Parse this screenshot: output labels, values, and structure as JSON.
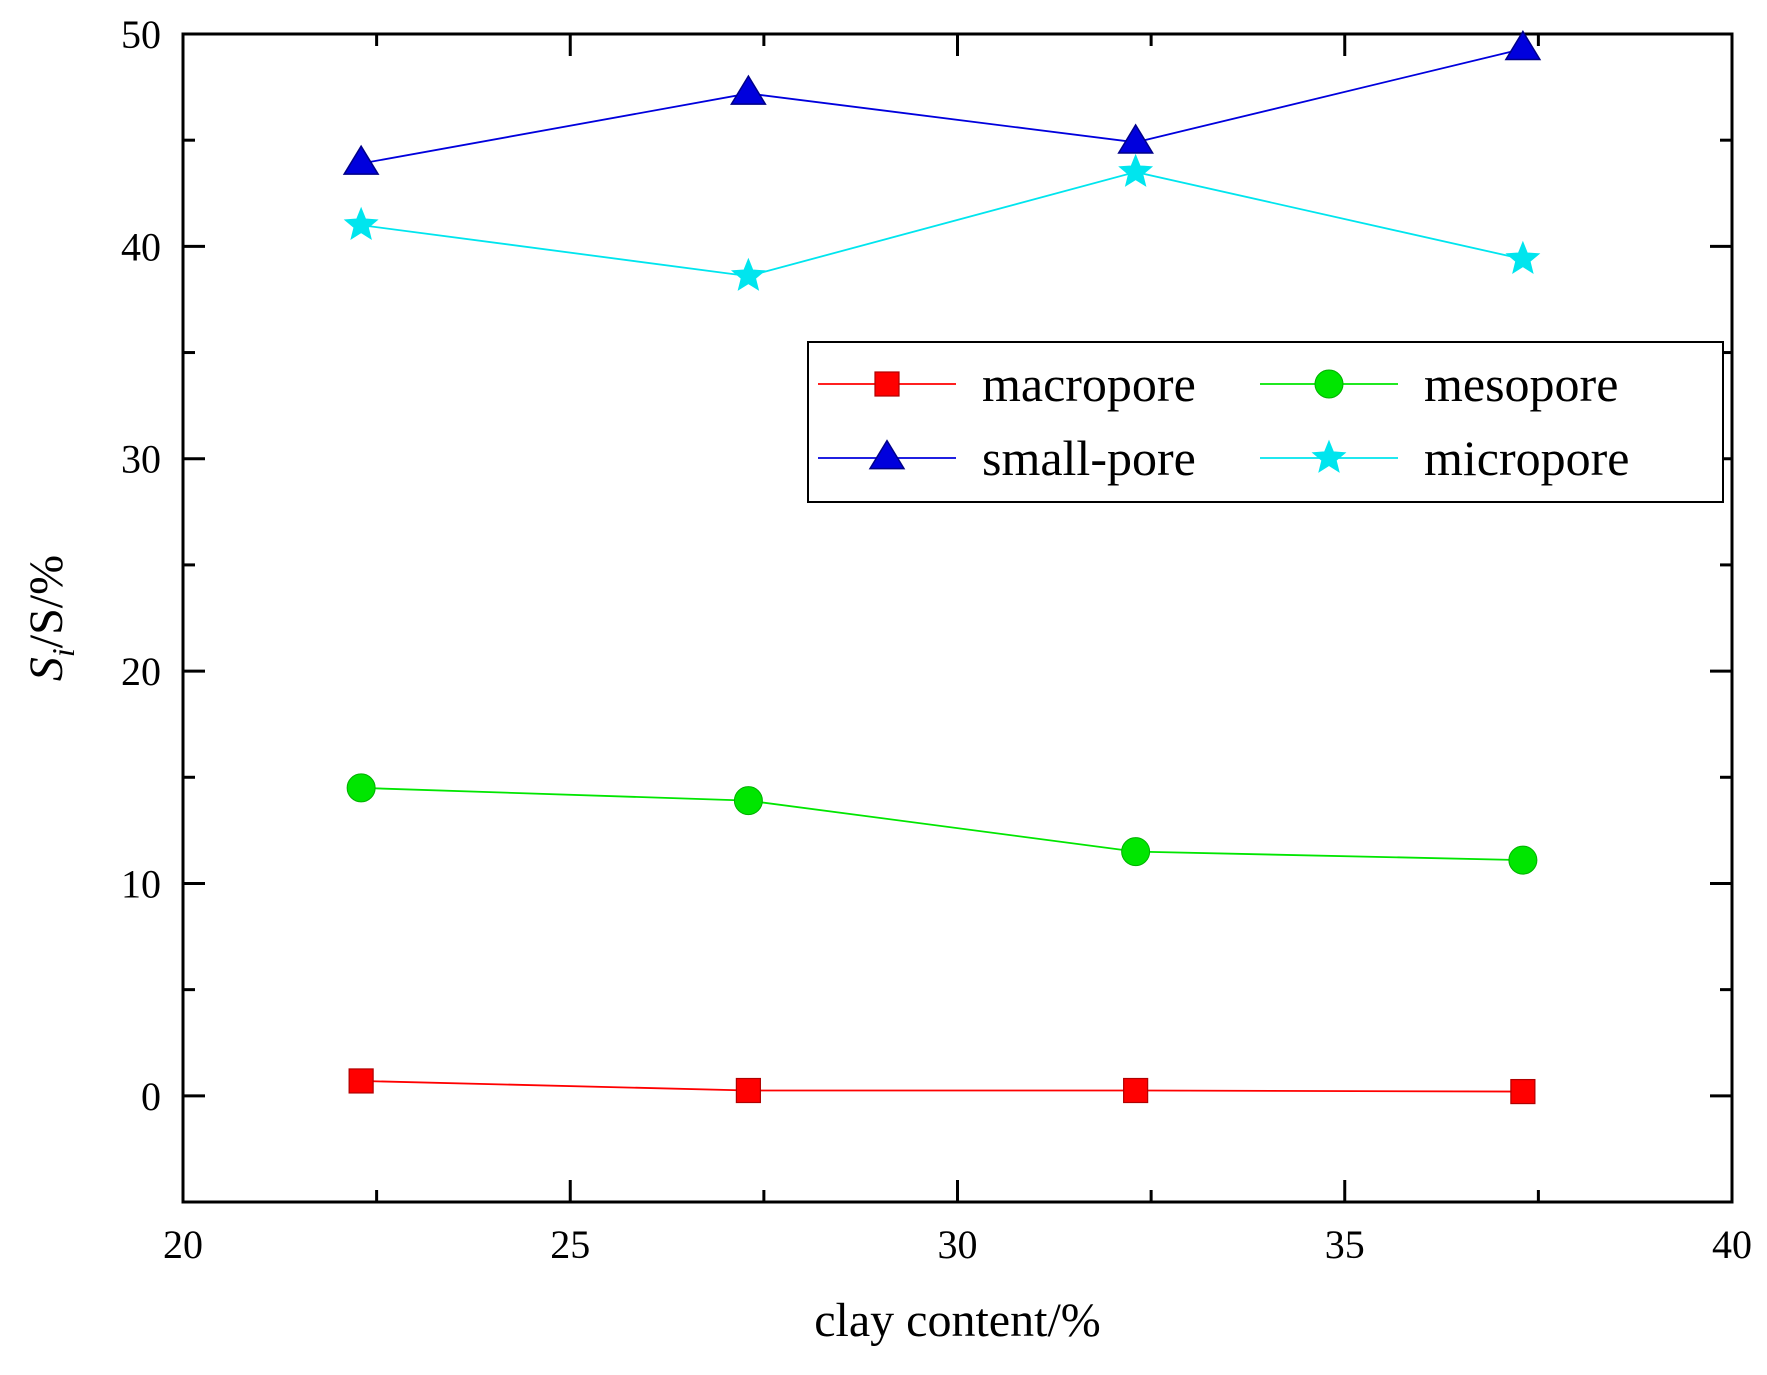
{
  "chart_data": {
    "type": "line",
    "title": "",
    "xlabel": "clay content/%",
    "ylabel": {
      "main": "S",
      "sub": "i",
      "rest": "/S/%"
    },
    "xlim": [
      20,
      40
    ],
    "ylim": [
      -5,
      50
    ],
    "x_ticks": [
      20,
      25,
      30,
      35,
      40
    ],
    "y_ticks": [
      0,
      10,
      20,
      30,
      40,
      50
    ],
    "x_tick_labels": [
      "20",
      "25",
      "30",
      "35",
      "40"
    ],
    "y_tick_labels": [
      "0",
      "10",
      "20",
      "30",
      "40",
      "50"
    ],
    "x": [
      22.3,
      27.3,
      32.3,
      37.3
    ],
    "legend_position": "upper-right",
    "grid": false,
    "series": [
      {
        "name": "macropore",
        "color": "#ff0000",
        "marker": "square",
        "values": [
          0.7,
          0.25,
          0.25,
          0.2
        ]
      },
      {
        "name": "mesopore",
        "color": "#00e600",
        "marker": "circle",
        "values": [
          14.5,
          13.9,
          11.5,
          11.1
        ]
      },
      {
        "name": "small-pore",
        "color": "#0000dd",
        "marker": "triangle",
        "values": [
          43.9,
          47.2,
          44.9,
          49.3
        ]
      },
      {
        "name": "micropore",
        "color": "#00e5ee",
        "marker": "star",
        "values": [
          41.0,
          38.6,
          43.5,
          39.4
        ]
      }
    ]
  }
}
